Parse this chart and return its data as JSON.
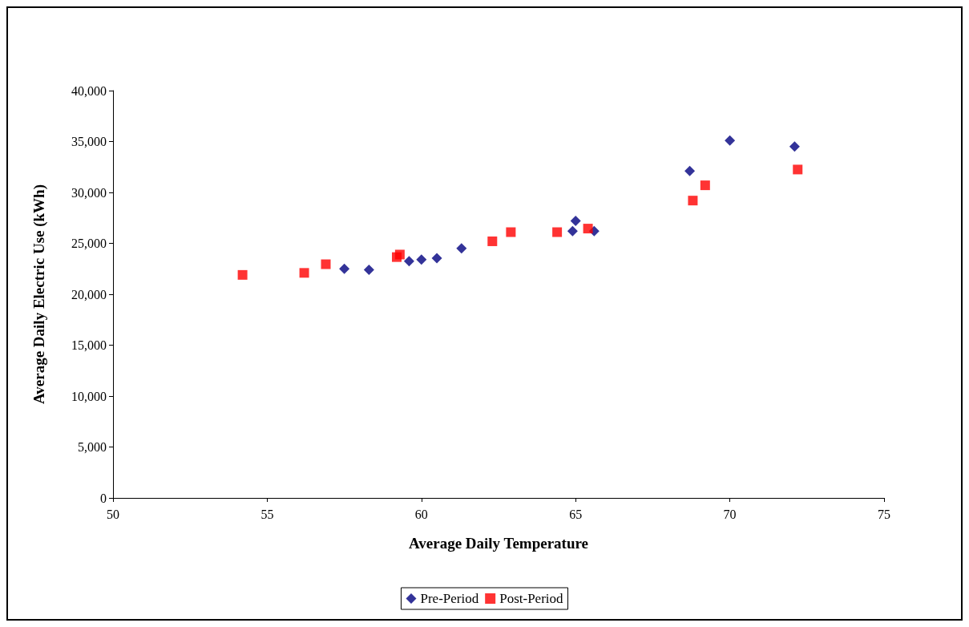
{
  "chart_data": {
    "type": "scatter",
    "xlabel": "Average Daily Temperature",
    "ylabel": "Average Daily Electric Use (kWh)",
    "xlim": [
      50,
      75
    ],
    "xticks": [
      50,
      55,
      60,
      65,
      70,
      75
    ],
    "ylim": [
      0,
      40000
    ],
    "yticks": [
      {
        "value": 0,
        "label": "0"
      },
      {
        "value": 5000,
        "label": "5,000"
      },
      {
        "value": 10000,
        "label": "10,000"
      },
      {
        "value": 15000,
        "label": "15,000"
      },
      {
        "value": 20000,
        "label": "20,000"
      },
      {
        "value": 25000,
        "label": "25,000"
      },
      {
        "value": 30000,
        "label": "30,000"
      },
      {
        "value": 35000,
        "label": "35,000"
      },
      {
        "value": 40000,
        "label": "40,000"
      }
    ],
    "grid": false,
    "legend": "bottom",
    "series": [
      {
        "name": "Pre-Period",
        "color": "#000080",
        "marker": "diamond",
        "x": [
          57.5,
          58.3,
          59.6,
          60.0,
          60.5,
          61.3,
          64.9,
          65.0,
          65.6,
          68.7,
          70.0,
          72.1
        ],
        "values": [
          22500,
          22400,
          23250,
          23400,
          23550,
          24500,
          26200,
          27200,
          26200,
          32100,
          35100,
          34500
        ]
      },
      {
        "name": "Post-Period",
        "color": "#ff0000",
        "marker": "square",
        "x": [
          54.2,
          56.2,
          56.9,
          59.2,
          59.3,
          62.3,
          62.9,
          64.4,
          65.4,
          68.8,
          69.2,
          72.2
        ],
        "values": [
          21900,
          22100,
          22950,
          23650,
          23900,
          25200,
          26100,
          26100,
          26450,
          29200,
          30700,
          32250
        ]
      }
    ]
  }
}
